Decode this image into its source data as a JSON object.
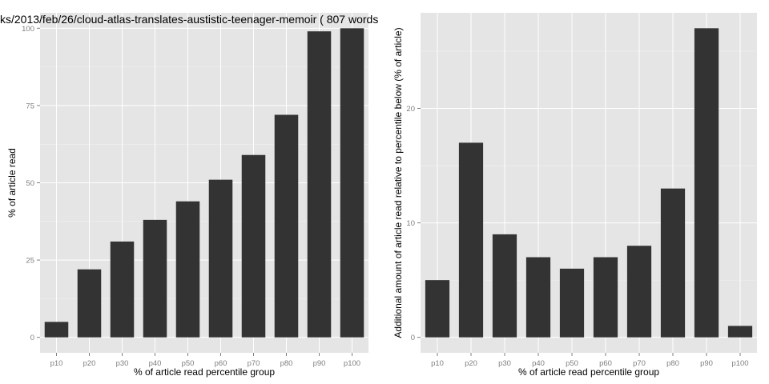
{
  "chart_data": [
    {
      "type": "bar",
      "title": "ks/2013/feb/26/cloud-atlas-translates-austistic-teenager-memoir ( 807 words",
      "xlabel": "% of article read percentile group",
      "ylabel": "% of article read",
      "categories": [
        "p10",
        "p20",
        "p30",
        "p40",
        "p50",
        "p60",
        "p70",
        "p80",
        "p90",
        "p100"
      ],
      "values": [
        5,
        22,
        31,
        38,
        44,
        51,
        59,
        72,
        99,
        100
      ],
      "yticks": [
        0,
        25,
        50,
        75,
        100
      ],
      "ytick_labels": [
        "0",
        "25",
        "50",
        "75",
        "100"
      ],
      "ylim": [
        -5,
        105
      ],
      "grid": true,
      "bar_color": "#333333",
      "panel_color": "#e5e5e5"
    },
    {
      "type": "bar",
      "title": "",
      "xlabel": "% of article read percentile group",
      "ylabel": "Additional amount of article read relative to percentile below (% of article)",
      "categories": [
        "p10",
        "p20",
        "p30",
        "p40",
        "p50",
        "p60",
        "p70",
        "p80",
        "p90",
        "p100"
      ],
      "values": [
        5,
        17,
        9,
        7,
        6,
        7,
        8,
        13,
        27,
        1
      ],
      "yticks": [
        0,
        10,
        20
      ],
      "ytick_labels": [
        "0",
        "10",
        "20"
      ],
      "ylim": [
        -1.35,
        28.35
      ],
      "grid": true,
      "bar_color": "#333333",
      "panel_color": "#e5e5e5"
    }
  ]
}
